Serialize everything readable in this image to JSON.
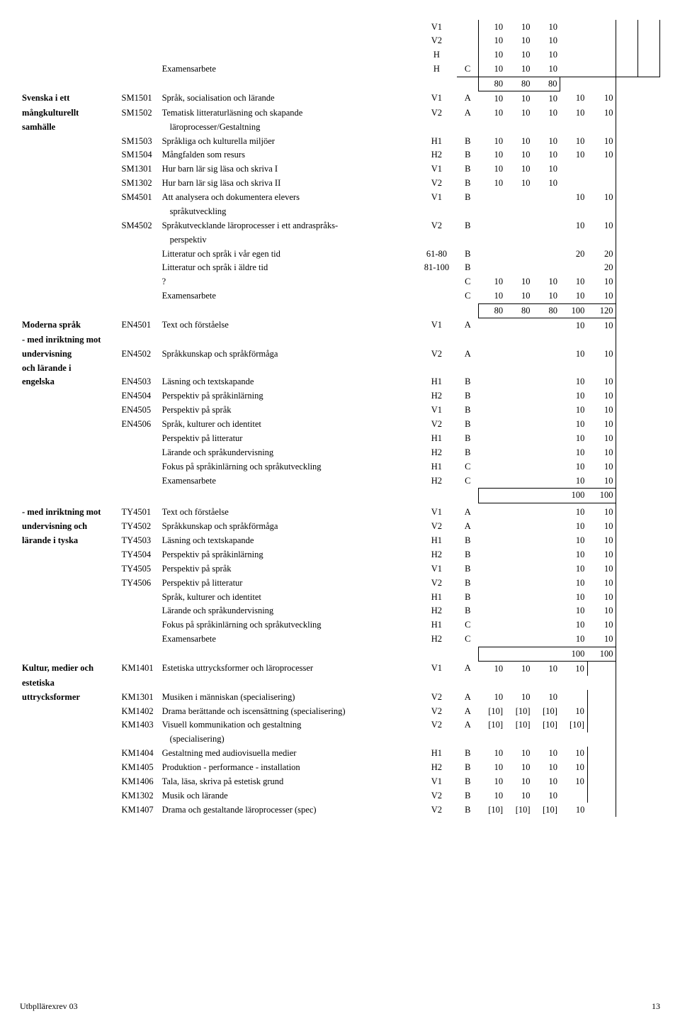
{
  "footer": {
    "left": "Utbpllärexrev 03",
    "page": "13"
  },
  "groups": [
    {
      "key": "svenska",
      "header_lines": [
        "Svenska i ett",
        "mångkulturellt",
        "samhälle"
      ],
      "pre_rows": [
        {
          "title": "",
          "term": "V1",
          "grade": "",
          "v": [
            "10",
            "10",
            "10",
            "",
            ""
          ],
          "boxed_ext": true,
          "ext_br": true
        },
        {
          "title": "",
          "term": "V2",
          "grade": "",
          "v": [
            "10",
            "10",
            "10",
            "",
            ""
          ],
          "boxed_ext": true,
          "ext_br": true
        },
        {
          "title": "",
          "term": "H",
          "grade": "",
          "v": [
            "10",
            "10",
            "10",
            "",
            ""
          ],
          "boxed_ext": true,
          "ext_br": true
        },
        {
          "title": "Examensarbete",
          "term": "H",
          "grade": "C",
          "v": [
            "10",
            "10",
            "10",
            "",
            ""
          ],
          "boxed_ext": true,
          "ext_br": true,
          "bottom_full": true
        },
        {
          "title": "",
          "term": "",
          "grade": "",
          "v": [
            "80",
            "80",
            "80",
            "",
            ""
          ],
          "sum_box": true
        }
      ],
      "rows": [
        {
          "code": "SM1501",
          "title": "Språk, socialisation och lärande",
          "term": "V1",
          "grade": "A",
          "v": [
            "10",
            "10",
            "10",
            "10",
            "10"
          ]
        },
        {
          "code": "SM1502",
          "title": "Tematisk litteraturläsning och skapande",
          "term": "V2",
          "grade": "A",
          "v": [
            "10",
            "10",
            "10",
            "10",
            "10"
          ]
        },
        {
          "sub": true,
          "title": " läroprocesser/Gestaltning"
        },
        {
          "code": "SM1503",
          "title": "Språkliga och kulturella miljöer",
          "term": "H1",
          "grade": "B",
          "v": [
            "10",
            "10",
            "10",
            "10",
            "10"
          ]
        },
        {
          "code": "SM1504",
          "title": "Mångfalden som resurs",
          "term": "H2",
          "grade": "B",
          "v": [
            "10",
            "10",
            "10",
            "10",
            "10"
          ]
        },
        {
          "code": "SM1301",
          "title": "Hur barn lär sig läsa och skriva I",
          "term": "V1",
          "grade": "B",
          "v": [
            "10",
            "10",
            "10",
            "",
            ""
          ]
        },
        {
          "code": "SM1302",
          "title": "Hur barn lär sig läsa och skriva II",
          "term": "V2",
          "grade": "B",
          "v": [
            "10",
            "10",
            "10",
            "",
            ""
          ]
        },
        {
          "code": "SM4501",
          "title": "Att analysera och dokumentera elevers",
          "term": "V1",
          "grade": "B",
          "v": [
            "",
            "",
            "",
            "10",
            "10"
          ]
        },
        {
          "sub": true,
          "title": "språkutveckling"
        },
        {
          "code": "SM4502",
          "title": "Språkutvecklande läroprocesser i ett andraspråks-",
          "term": "V2",
          "grade": "B",
          "v": [
            "",
            "",
            "",
            "10",
            "10"
          ]
        },
        {
          "sub": true,
          "title": "perspektiv"
        },
        {
          "code": "",
          "title": "Litteratur och språk i vår egen tid",
          "term": "61-80",
          "grade": "B",
          "v": [
            "",
            "",
            "",
            "20",
            "20"
          ]
        },
        {
          "code": "",
          "title": "Litteratur och språk i äldre tid",
          "term": "81-100",
          "grade": "B",
          "v": [
            "",
            "",
            "",
            "",
            "20"
          ]
        },
        {
          "code": "",
          "title": "?",
          "term": "",
          "grade": "C",
          "v": [
            "10",
            "10",
            "10",
            "10",
            "10"
          ]
        },
        {
          "code": "",
          "title": "Examensarbete",
          "term": "",
          "grade": "C",
          "v": [
            "10",
            "10",
            "10",
            "10",
            "10"
          ],
          "bottom": true
        }
      ],
      "sum": [
        "80",
        "80",
        "80",
        "100",
        "120"
      ]
    },
    {
      "key": "moderna",
      "header_lines": [
        "Moderna språk",
        "- med inriktning mot",
        "undervisning",
        "och lärande i",
        "engelska"
      ],
      "rows": [
        {
          "code": "EN4501",
          "title": "Text och förståelse",
          "term": "V1",
          "grade": "A",
          "v": [
            "",
            "",
            "",
            "10",
            "10"
          ]
        },
        {
          "blank": true
        },
        {
          "code": "EN4502",
          "title": "Språkkunskap och språkförmåga",
          "term": "V2",
          "grade": "A",
          "v": [
            "",
            "",
            "",
            "10",
            "10"
          ]
        },
        {
          "blank": true
        },
        {
          "code": "EN4503",
          "title": "Läsning och textskapande",
          "term": "H1",
          "grade": "B",
          "v": [
            "",
            "",
            "",
            "10",
            "10"
          ]
        },
        {
          "code": "EN4504",
          "title": "Perspektiv på språkinlärning",
          "term": "H2",
          "grade": "B",
          "v": [
            "",
            "",
            "",
            "10",
            "10"
          ]
        },
        {
          "code": "EN4505",
          "title": "Perspektiv på språk",
          "term": "V1",
          "grade": "B",
          "v": [
            "",
            "",
            "",
            "10",
            "10"
          ]
        },
        {
          "code": "EN4506",
          "title": "Språk, kulturer och identitet",
          "term": "V2",
          "grade": "B",
          "v": [
            "",
            "",
            "",
            "10",
            "10"
          ]
        },
        {
          "code": "",
          "title": "Perspektiv på litteratur",
          "term": "H1",
          "grade": "B",
          "v": [
            "",
            "",
            "",
            "10",
            "10"
          ]
        },
        {
          "code": "",
          "title": "Lärande och språkundervisning",
          "term": "H2",
          "grade": "B",
          "v": [
            "",
            "",
            "",
            "10",
            "10"
          ]
        },
        {
          "code": "",
          "title": "Fokus på språkinlärning och språkutveckling",
          "term": "H1",
          "grade": "C",
          "v": [
            "",
            "",
            "",
            "10",
            "10"
          ]
        },
        {
          "code": "",
          "title": "Examensarbete",
          "term": "H2",
          "grade": "C",
          "v": [
            "",
            "",
            "",
            "10",
            "10"
          ],
          "bottom": true
        }
      ],
      "sum": [
        "",
        "",
        "",
        "100",
        "100"
      ]
    },
    {
      "key": "tyska",
      "header_lines": [
        "- med inriktning mot",
        "undervisning och",
        "lärande i tyska"
      ],
      "header_offset": 1,
      "rows": [
        {
          "blank": true
        },
        {
          "code": "TY4501",
          "title": "Text och förståelse",
          "term": "V1",
          "grade": "A",
          "v": [
            "",
            "",
            "",
            "10",
            "10"
          ]
        },
        {
          "code": "TY4502",
          "title": "Språkkunskap och språkförmåga",
          "term": "V2",
          "grade": "A",
          "v": [
            "",
            "",
            "",
            "10",
            "10"
          ]
        },
        {
          "code": "TY4503",
          "title": "Läsning och textskapande",
          "term": "H1",
          "grade": "B",
          "v": [
            "",
            "",
            "",
            "10",
            "10"
          ]
        },
        {
          "code": "TY4504",
          "title": "Perspektiv på språkinlärning",
          "term": "H2",
          "grade": "B",
          "v": [
            "",
            "",
            "",
            "10",
            "10"
          ]
        },
        {
          "code": "TY4505",
          "title": "Perspektiv på språk",
          "term": "V1",
          "grade": "B",
          "v": [
            "",
            "",
            "",
            "10",
            "10"
          ]
        },
        {
          "code": "TY4506",
          "title": "Perspektiv på litteratur",
          "term": "V2",
          "grade": "B",
          "v": [
            "",
            "",
            "",
            "10",
            "10"
          ]
        },
        {
          "code": "",
          "title": "Språk, kulturer och identitet",
          "term": "H1",
          "grade": "B",
          "v": [
            "",
            "",
            "",
            "10",
            "10"
          ]
        },
        {
          "code": "",
          "title": "Lärande och språkundervisning",
          "term": "H2",
          "grade": "B",
          "v": [
            "",
            "",
            "",
            "10",
            "10"
          ]
        },
        {
          "code": "",
          "title": "Fokus på språkinlärning och språkutveckling",
          "term": "H1",
          "grade": "C",
          "v": [
            "",
            "",
            "",
            "10",
            "10"
          ]
        },
        {
          "code": "",
          "title": "Examensarbete",
          "term": "H2",
          "grade": "C",
          "v": [
            "",
            "",
            "",
            "10",
            "10"
          ],
          "bottom": true
        }
      ],
      "sum": [
        "",
        "",
        "",
        "100",
        "100"
      ]
    },
    {
      "key": "kultur",
      "header_lines": [
        "Kultur, medier och",
        "estetiska",
        "uttrycksformer"
      ],
      "rows": [
        {
          "code": "KM1401",
          "title": "Estetiska uttrycksformer och läroprocesser",
          "term": "V1",
          "grade": "A",
          "v": [
            "10",
            "10",
            "10",
            "10",
            ""
          ],
          "v4_sep": true
        },
        {
          "blank": true
        },
        {
          "code": "KM1301",
          "title": "Musiken i människan (specialisering)",
          "term": "V2",
          "grade": "A",
          "v": [
            "10",
            "10",
            "10",
            "",
            ""
          ],
          "v4_sep": true
        },
        {
          "code": "KM1402",
          "title": "Drama berättande och iscensättning (specialisering)",
          "term": "V2",
          "grade": "A",
          "v": [
            "[10]",
            "[10]",
            "[10]",
            "10",
            ""
          ],
          "v4_sep": true
        },
        {
          "code": "KM1403",
          "title": "Visuell kommunikation och gestaltning",
          "term": "V2",
          "grade": "A",
          "v": [
            "[10]",
            "[10]",
            "[10]",
            "[10]",
            ""
          ],
          "v4_sep": true
        },
        {
          "sub": true,
          "title": "(specialisering)"
        },
        {
          "code": "KM1404",
          "title": "Gestaltning med audiovisuella medier",
          "term": "H1",
          "grade": "B",
          "v": [
            "10",
            "10",
            "10",
            "10",
            ""
          ],
          "v4_sep": true
        },
        {
          "code": "KM1405",
          "title": "Produktion - performance - installation",
          "term": "H2",
          "grade": "B",
          "v": [
            "10",
            "10",
            "10",
            "10",
            ""
          ],
          "v4_sep": true
        },
        {
          "code": "KM1406",
          "title": "Tala, läsa, skriva på estetisk grund",
          "term": "V1",
          "grade": "B",
          "v": [
            "10",
            "10",
            "10",
            "10",
            ""
          ],
          "v4_sep": true
        },
        {
          "code": "KM1302",
          "title": "Musik och lärande",
          "term": "V2",
          "grade": "B",
          "v": [
            "10",
            "10",
            "10",
            "",
            ""
          ],
          "v4_sep": true
        },
        {
          "code": "KM1407",
          "title": "Drama och gestaltande läroprocesser (spec)",
          "term": "V2",
          "grade": "B",
          "v": [
            "[10]",
            "[10]",
            "[10]",
            "10",
            ""
          ]
        }
      ]
    }
  ]
}
